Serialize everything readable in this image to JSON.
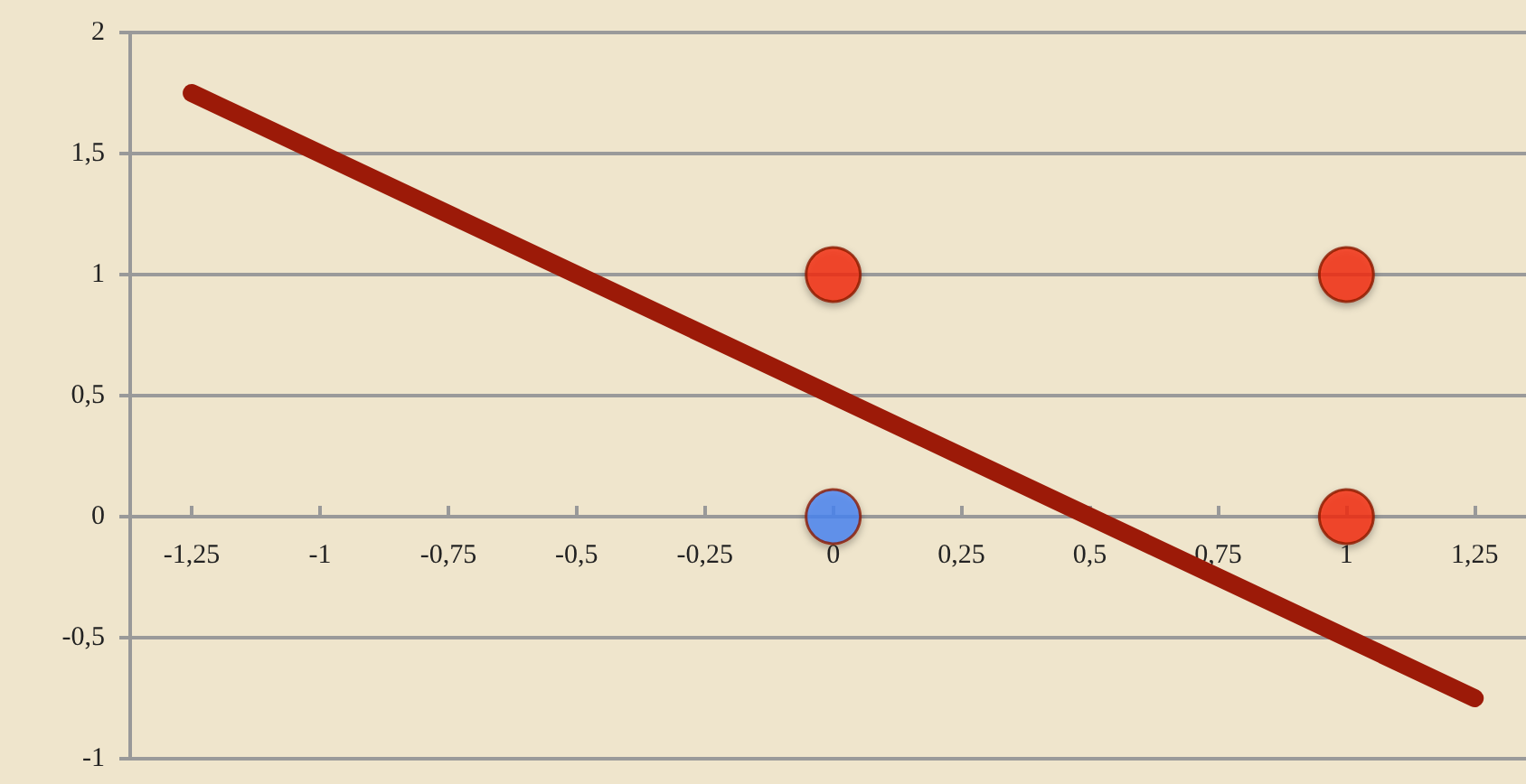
{
  "chart_data": {
    "type": "scatter",
    "xlim": [
      -1.37,
      1.35
    ],
    "ylim": [
      -1,
      2
    ],
    "xticks": [
      {
        "value": -1.25,
        "label": "-1,25"
      },
      {
        "value": -1,
        "label": "-1"
      },
      {
        "value": -0.75,
        "label": "-0,75"
      },
      {
        "value": -0.5,
        "label": "-0,5"
      },
      {
        "value": -0.25,
        "label": "-0,25"
      },
      {
        "value": 0,
        "label": "0"
      },
      {
        "value": 0.25,
        "label": "0,25"
      },
      {
        "value": 0.5,
        "label": "0,5"
      },
      {
        "value": 0.75,
        "label": "0,75"
      },
      {
        "value": 1,
        "label": "1"
      },
      {
        "value": 1.25,
        "label": "1,25"
      }
    ],
    "yticks": [
      {
        "value": -1,
        "label": "-1"
      },
      {
        "value": -0.5,
        "label": "-0,5"
      },
      {
        "value": 0,
        "label": "0"
      },
      {
        "value": 0.5,
        "label": "0,5"
      },
      {
        "value": 1,
        "label": "1"
      },
      {
        "value": 1.5,
        "label": "1,5"
      },
      {
        "value": 2,
        "label": "2"
      }
    ],
    "grid": "y",
    "marker": "circle",
    "series": [
      {
        "type": "line",
        "color": "#9c1a08",
        "x": [
          -1.25,
          1.25
        ],
        "values": [
          1.75,
          -0.75
        ],
        "marker": "none",
        "line_style": "solid"
      },
      {
        "color": "#f52a0a",
        "x": [
          0,
          1,
          1
        ],
        "values": [
          1,
          1,
          0
        ]
      },
      {
        "color": "#4a86f5",
        "x": [
          0
        ],
        "values": [
          0
        ]
      }
    ]
  }
}
